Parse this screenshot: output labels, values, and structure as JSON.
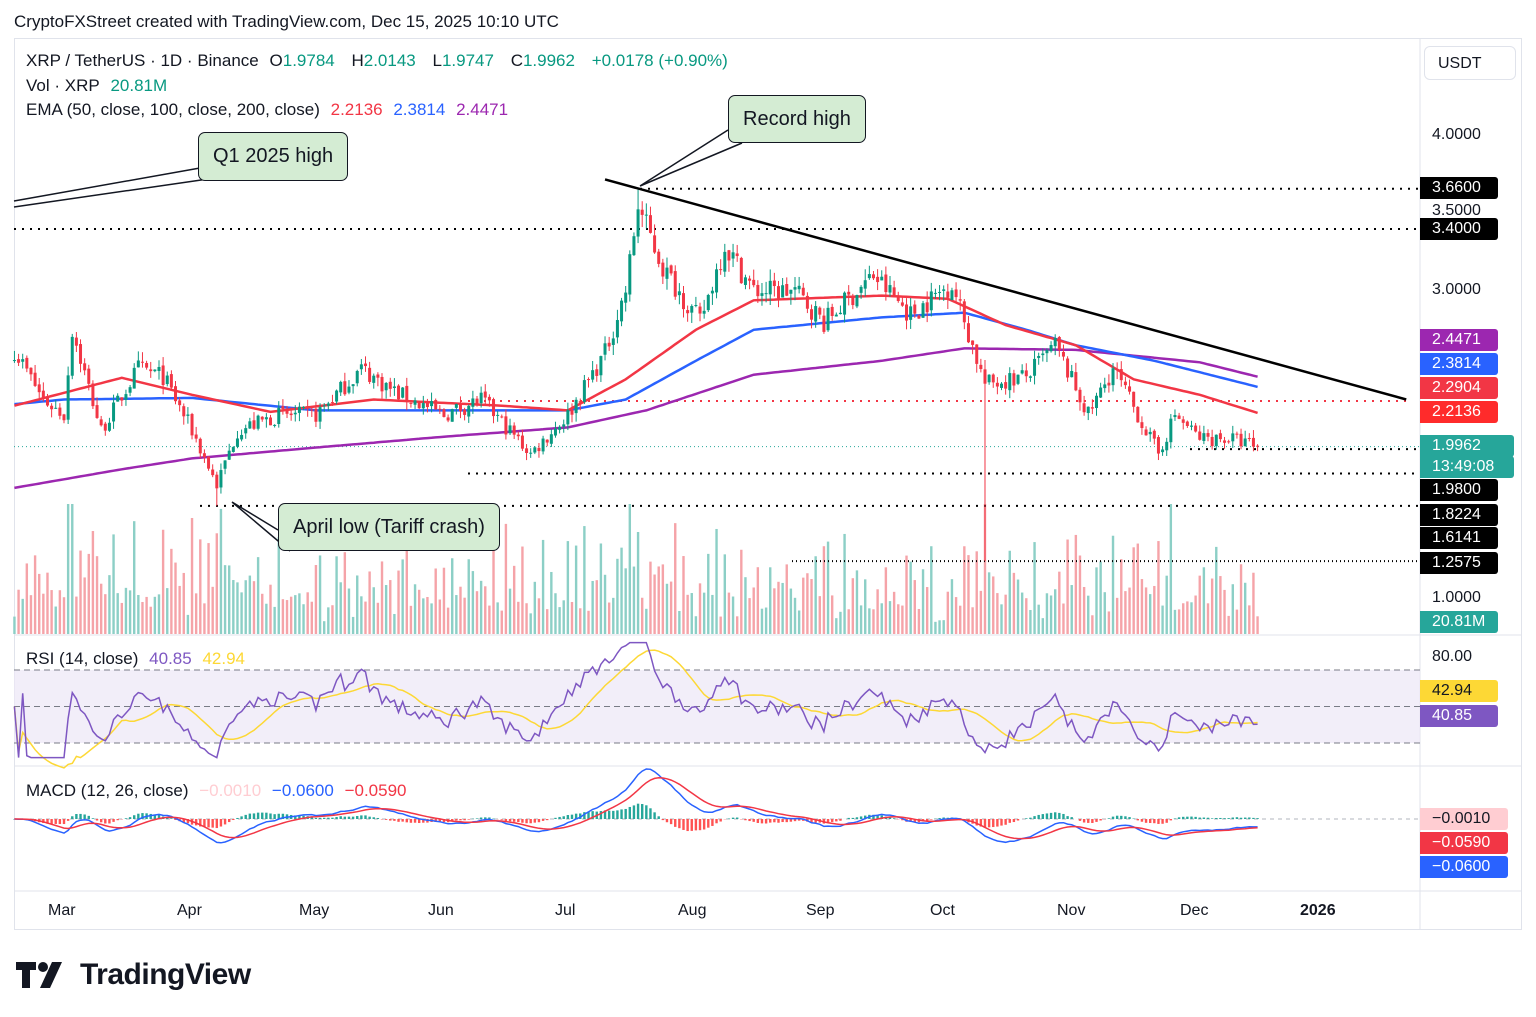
{
  "header": {
    "credit": "CryptoFXStreet created with TradingView.com, Dec 15, 2025 10:10 UTC"
  },
  "legend": {
    "symbol": "XRP / TetherUS · 1D · Binance",
    "o_label": "O",
    "o": "1.9784",
    "h_label": "H",
    "h": "2.0143",
    "l_label": "L",
    "l": "1.9747",
    "c_label": "C",
    "c": "1.9962",
    "change": "+0.0178 (+0.90%)",
    "vol_label": "Vol · XRP",
    "vol": "20.81M",
    "ema_label": "EMA (50, close, 100, close, 200, close)",
    "ema50": "2.2136",
    "ema100": "2.3814",
    "ema200": "2.4471",
    "rsi_label": "RSI (14, close)",
    "rsi": "40.85",
    "rsi_ma": "42.94",
    "macd_label": "MACD (12, 26, close)",
    "macd_hist": "−0.0010",
    "macd": "−0.0600",
    "macd_signal": "−0.0590"
  },
  "price_axis": {
    "currency": "USDT",
    "ticks": [
      "4.0000",
      "3.5000",
      "3.0000",
      "1.0000"
    ],
    "labels": [
      {
        "text": "3.6600",
        "color": "#000000"
      },
      {
        "text": "3.4000",
        "color": "#000000"
      },
      {
        "text": "2.4471",
        "color": "#9c27b0"
      },
      {
        "text": "2.3814",
        "color": "#2962ff"
      },
      {
        "text": "2.2904",
        "color": "#f23645"
      },
      {
        "text": "2.2136",
        "color": "#ff2b2b"
      },
      {
        "text": "1.9962",
        "color": "#26a69a"
      },
      {
        "text": "13:49:08",
        "color": "#26a69a"
      },
      {
        "text": "1.9800",
        "color": "#000000"
      },
      {
        "text": "1.8224",
        "color": "#000000"
      },
      {
        "text": "1.6141",
        "color": "#000000"
      },
      {
        "text": "1.2575",
        "color": "#000000"
      },
      {
        "text": "20.81M",
        "color": "#26a69a"
      }
    ],
    "rsi_ticks": [
      "80.00"
    ],
    "rsi_labels": [
      {
        "text": "42.94",
        "color": "#fdd835"
      },
      {
        "text": "40.85",
        "color": "#7e57c2"
      }
    ],
    "macd_labels": [
      {
        "text": "−0.0010",
        "color": "#ffcdd2"
      },
      {
        "text": "−0.0590",
        "color": "#f23645"
      },
      {
        "text": "−0.0600",
        "color": "#2962ff"
      }
    ]
  },
  "time_axis": [
    "Mar",
    "Apr",
    "May",
    "Jun",
    "Jul",
    "Aug",
    "Sep",
    "Oct",
    "Nov",
    "Dec",
    "2026"
  ],
  "annotations": {
    "q1_high": "Q1 2025 high",
    "record_high": "Record high",
    "april_low": "April low (Tariff crash)"
  },
  "footer": {
    "brand": "TradingView"
  },
  "chart_data": {
    "type": "candlestick",
    "symbol": "XRP/USDT",
    "interval": "1D",
    "y_scale": "linear",
    "ylim": [
      0.9,
      4.3
    ],
    "colors": {
      "up": "#089981",
      "down": "#f23645",
      "ema50": "#f23645",
      "ema100": "#2962ff",
      "ema200": "#9c27b0",
      "rsi": "#7e57c2",
      "rsi_ma": "#fdd835",
      "macd": "#2962ff",
      "signal": "#f23645"
    },
    "closes": [
      [
        "2025-02-17",
        2.62
      ],
      [
        "2025-02-24",
        2.3
      ],
      [
        "2025-03-01",
        2.2
      ],
      [
        "2025-03-03",
        2.75
      ],
      [
        "2025-03-10",
        2.1
      ],
      [
        "2025-03-19",
        2.5
      ],
      [
        "2025-03-25",
        2.45
      ],
      [
        "2025-04-01",
        2.1
      ],
      [
        "2025-04-07",
        1.75
      ],
      [
        "2025-04-12",
        2.1
      ],
      [
        "2025-04-22",
        2.2
      ],
      [
        "2025-05-01",
        2.2
      ],
      [
        "2025-05-12",
        2.5
      ],
      [
        "2025-05-20",
        2.35
      ],
      [
        "2025-06-01",
        2.2
      ],
      [
        "2025-06-10",
        2.3
      ],
      [
        "2025-06-22",
        1.95
      ],
      [
        "2025-07-01",
        2.2
      ],
      [
        "2025-07-10",
        2.6
      ],
      [
        "2025-07-15",
        3.0
      ],
      [
        "2025-07-18",
        3.55
      ],
      [
        "2025-07-24",
        3.15
      ],
      [
        "2025-08-02",
        2.8
      ],
      [
        "2025-08-08",
        3.3
      ],
      [
        "2025-08-15",
        3.0
      ],
      [
        "2025-08-25",
        3.0
      ],
      [
        "2025-09-01",
        2.8
      ],
      [
        "2025-09-13",
        3.1
      ],
      [
        "2025-09-22",
        2.85
      ],
      [
        "2025-10-02",
        3.05
      ],
      [
        "2025-10-10",
        2.4
      ],
      [
        "2025-10-20",
        2.45
      ],
      [
        "2025-10-27",
        2.65
      ],
      [
        "2025-11-04",
        2.2
      ],
      [
        "2025-11-10",
        2.5
      ],
      [
        "2025-11-21",
        1.95
      ],
      [
        "2025-11-25",
        2.2
      ],
      [
        "2025-12-01",
        2.05
      ],
      [
        "2025-12-08",
        2.05
      ],
      [
        "2025-12-15",
        1.9962
      ]
    ],
    "extreme_wicks": [
      [
        "2025-04-07",
        "low",
        1.6141
      ],
      [
        "2025-07-18",
        "high",
        3.66
      ],
      [
        "2025-10-10",
        "low",
        1.2575
      ]
    ],
    "ema50": [
      [
        "2025-02-17",
        2.26
      ],
      [
        "2025-03-15",
        2.44
      ],
      [
        "2025-04-01",
        2.33
      ],
      [
        "2025-04-20",
        2.22
      ],
      [
        "2025-05-15",
        2.3
      ],
      [
        "2025-06-15",
        2.26
      ],
      [
        "2025-07-01",
        2.23
      ],
      [
        "2025-07-15",
        2.43
      ],
      [
        "2025-08-01",
        2.75
      ],
      [
        "2025-08-15",
        2.94
      ],
      [
        "2025-09-15",
        2.97
      ],
      [
        "2025-10-01",
        2.95
      ],
      [
        "2025-10-15",
        2.78
      ],
      [
        "2025-11-01",
        2.65
      ],
      [
        "2025-11-15",
        2.43
      ],
      [
        "2025-12-01",
        2.33
      ],
      [
        "2025-12-15",
        2.2136
      ]
    ],
    "ema100": [
      [
        "2025-02-17",
        2.27
      ],
      [
        "2025-03-01",
        2.3
      ],
      [
        "2025-04-01",
        2.31
      ],
      [
        "2025-05-01",
        2.23
      ],
      [
        "2025-06-01",
        2.23
      ],
      [
        "2025-07-01",
        2.23
      ],
      [
        "2025-07-15",
        2.3
      ],
      [
        "2025-08-01",
        2.55
      ],
      [
        "2025-08-15",
        2.75
      ],
      [
        "2025-09-15",
        2.83
      ],
      [
        "2025-10-05",
        2.86
      ],
      [
        "2025-10-20",
        2.75
      ],
      [
        "2025-11-01",
        2.65
      ],
      [
        "2025-11-20",
        2.55
      ],
      [
        "2025-12-15",
        2.3814
      ]
    ],
    "ema200": [
      [
        "2025-02-17",
        1.73
      ],
      [
        "2025-03-15",
        1.85
      ],
      [
        "2025-04-01",
        1.92
      ],
      [
        "2025-05-01",
        1.99
      ],
      [
        "2025-06-01",
        2.06
      ],
      [
        "2025-07-01",
        2.12
      ],
      [
        "2025-07-20",
        2.23
      ],
      [
        "2025-08-15",
        2.46
      ],
      [
        "2025-09-15",
        2.55
      ],
      [
        "2025-10-05",
        2.63
      ],
      [
        "2025-11-01",
        2.62
      ],
      [
        "2025-12-01",
        2.54
      ],
      [
        "2025-12-15",
        2.4471
      ]
    ],
    "horizontal_levels": [
      3.66,
      3.4,
      2.2904,
      1.98,
      1.8224,
      1.6141,
      1.2575
    ],
    "trendline": [
      [
        "2025-07-10",
        3.72
      ],
      [
        "2026-01-20",
        2.3
      ]
    ],
    "rsi_levels": [
      70,
      50,
      30
    ]
  }
}
